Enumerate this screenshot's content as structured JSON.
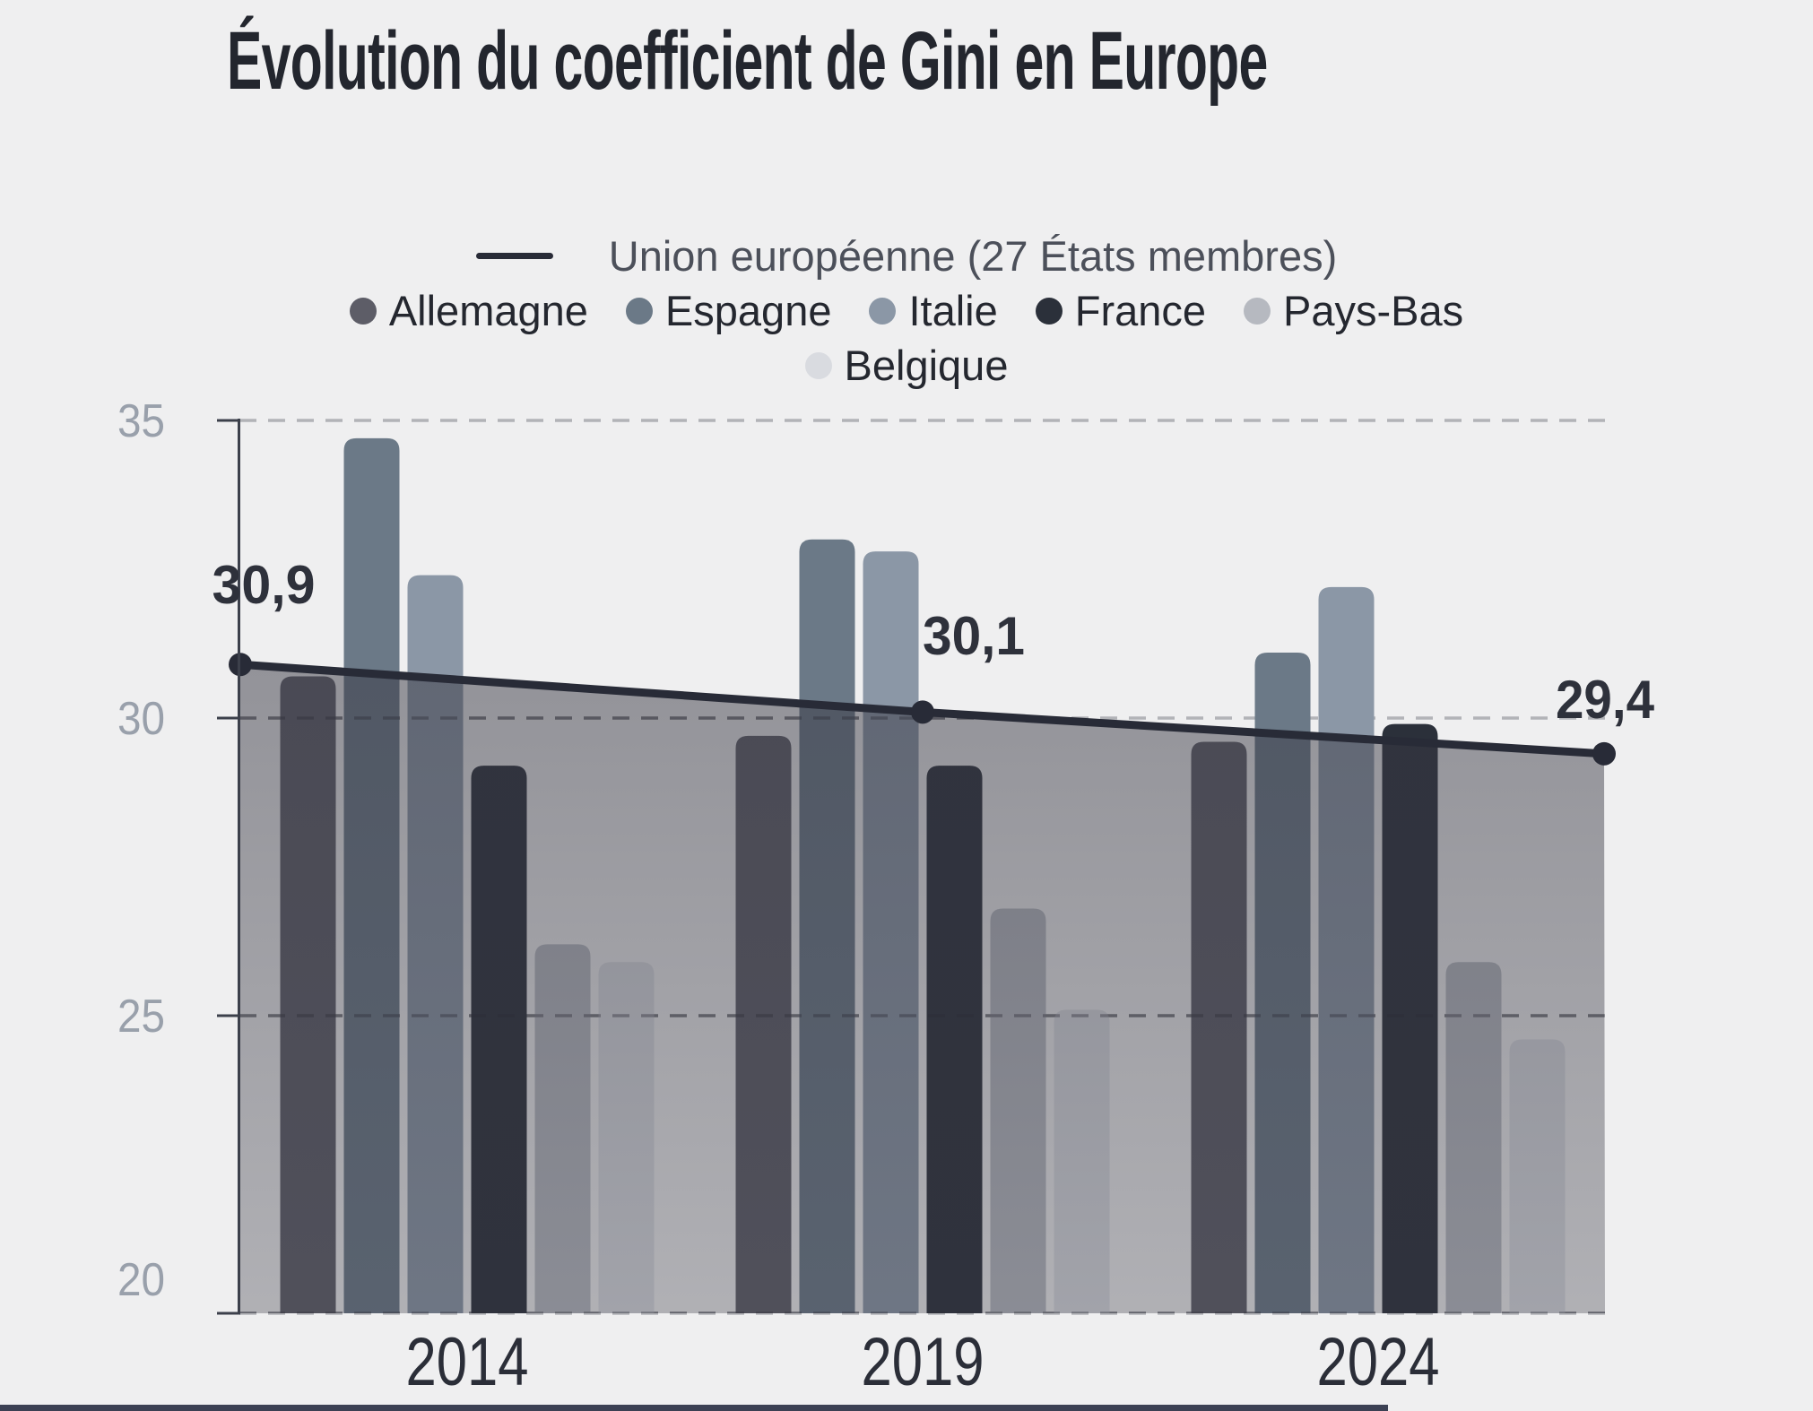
{
  "title": "Évolution du coefficient de Gini en Europe",
  "legend": {
    "line_label": "Union européenne (27 États membres)"
  },
  "chart_data": {
    "type": "bar",
    "categories": [
      "2014",
      "2019",
      "2024"
    ],
    "series": [
      {
        "name": "Allemagne",
        "color": "#5d5d67",
        "values": [
          30.7,
          29.7,
          29.6
        ]
      },
      {
        "name": "Espagne",
        "color": "#6b7987",
        "values": [
          34.7,
          33.0,
          31.1
        ]
      },
      {
        "name": "Italie",
        "color": "#8b97a6",
        "values": [
          32.4,
          32.8,
          32.2
        ]
      },
      {
        "name": "France",
        "color": "#2b303a",
        "values": [
          29.2,
          29.2,
          29.9
        ]
      },
      {
        "name": "Pays-Bas",
        "color": "#b6b9c0",
        "values": [
          26.2,
          26.8,
          25.9
        ]
      },
      {
        "name": "Belgique",
        "color": "#d9dbe0",
        "values": [
          25.9,
          25.1,
          24.6
        ]
      }
    ],
    "line_series": {
      "name": "Union européenne (27 États membres)",
      "color": "#282b37",
      "values": [
        30.9,
        30.1,
        29.4
      ],
      "labels": [
        "30,9",
        "30,1",
        "29,4"
      ],
      "area_under_line": true
    },
    "title": "Évolution du coefficient de Gini en Europe",
    "xlabel": "",
    "ylabel": "",
    "ylim": [
      20,
      35
    ],
    "y_ticks": [
      35,
      30,
      25,
      20
    ],
    "grid": "horizontal dashed",
    "legend_position": "top-center"
  },
  "colors": {
    "background": "#efeff0",
    "title": "#23262e",
    "tick_label": "#99a0ab",
    "year_label": "#2b2e38",
    "axis": "#3c404b",
    "grid": "#b2b3b7",
    "grid_over_area": "rgba(45,45,55,0.40)",
    "annotation": "#2e313b",
    "area_top": "rgba(55,55,66,0.50)",
    "area_bottom": "rgba(55,55,66,0.34)",
    "bottom_bar": "#3b4053"
  }
}
